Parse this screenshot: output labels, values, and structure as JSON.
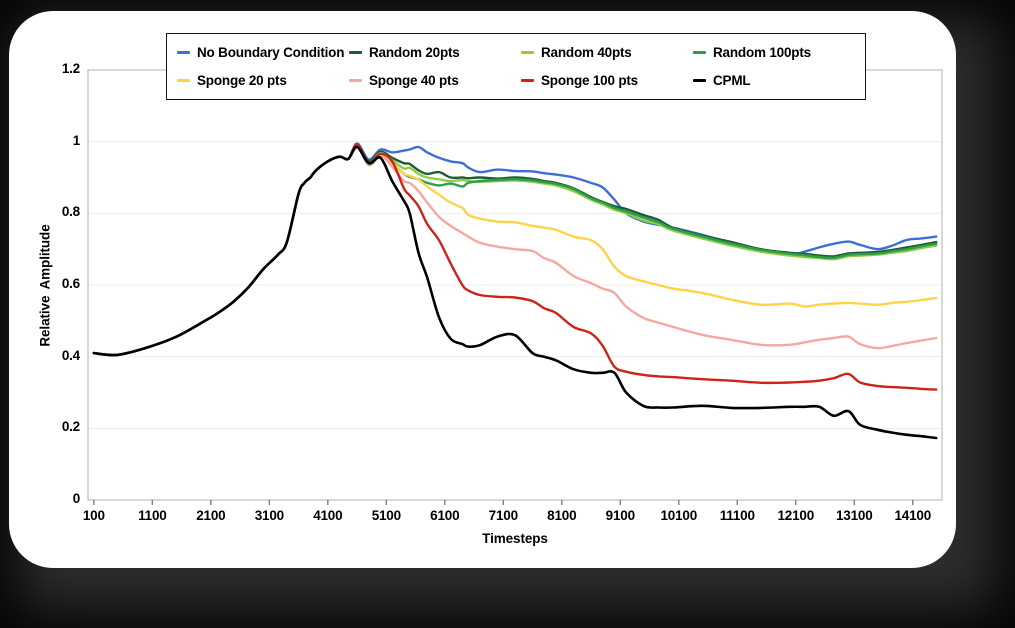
{
  "frame": {
    "backdrop_color": "#2e2e2e",
    "card_color": "#ffffff"
  },
  "chart_data": {
    "type": "line",
    "title": "",
    "xlabel": "Timesteps",
    "ylabel": "Relative Amplitude",
    "xlim": [
      0,
      14600
    ],
    "ylim": [
      0,
      1.2
    ],
    "grid": "horizontal-only",
    "legend_position": "top inside, 2 rows x 4 columns, white box with black border",
    "x_ticks": [
      100,
      1100,
      2100,
      3100,
      4100,
      5100,
      6100,
      7100,
      8100,
      9100,
      10100,
      11100,
      12100,
      13100,
      14100
    ],
    "x_tick_labels": [
      "100",
      "1100",
      "2100",
      "3100",
      "4100",
      "5100",
      "6100",
      "7100",
      "8100",
      "9100",
      "10100",
      "11100",
      "12100",
      "13100",
      "14100"
    ],
    "y_ticks": [
      0,
      0.2,
      0.4,
      0.6,
      0.8,
      1,
      1.2
    ],
    "y_tick_labels": [
      "0",
      "0.2",
      "0.4",
      "0.6",
      "0.8",
      "1",
      "1.2"
    ],
    "x": [
      100,
      500,
      1000,
      1500,
      2000,
      2250,
      2500,
      2750,
      3000,
      3250,
      3400,
      3600,
      3700,
      3800,
      3900,
      4100,
      4300,
      4450,
      4600,
      4800,
      5000,
      5200,
      5400,
      5500,
      5650,
      5800,
      6000,
      6200,
      6400,
      6500,
      6700,
      7000,
      7300,
      7600,
      7800,
      8000,
      8300,
      8600,
      8800,
      9000,
      9200,
      9500,
      9750,
      10000,
      10500,
      11000,
      11500,
      12000,
      12250,
      12500,
      12750,
      13000,
      13200,
      13500,
      13750,
      14000,
      14250,
      14500
    ],
    "series": [
      {
        "name": "No Boundary Condition",
        "color": "#3B6FD6",
        "width": 2.4,
        "values": [
          0.41,
          0.405,
          0.425,
          0.455,
          0.5,
          0.525,
          0.555,
          0.595,
          0.645,
          0.685,
          0.72,
          0.855,
          0.885,
          0.9,
          0.92,
          0.945,
          0.958,
          0.952,
          0.995,
          0.95,
          0.978,
          0.97,
          0.975,
          0.978,
          0.985,
          0.97,
          0.955,
          0.945,
          0.94,
          0.928,
          0.915,
          0.922,
          0.918,
          0.917,
          0.912,
          0.908,
          0.9,
          0.885,
          0.872,
          0.838,
          0.8,
          0.777,
          0.768,
          0.76,
          0.74,
          0.717,
          0.7,
          0.684,
          0.693,
          0.705,
          0.715,
          0.721,
          0.712,
          0.7,
          0.71,
          0.726,
          0.73,
          0.735
        ]
      },
      {
        "name": "Random 20pts",
        "color": "#1F5C33",
        "width": 2.4,
        "values": [
          0.41,
          0.405,
          0.425,
          0.455,
          0.5,
          0.525,
          0.555,
          0.595,
          0.645,
          0.685,
          0.72,
          0.855,
          0.885,
          0.9,
          0.92,
          0.945,
          0.958,
          0.952,
          0.992,
          0.945,
          0.972,
          0.955,
          0.94,
          0.938,
          0.92,
          0.91,
          0.915,
          0.9,
          0.9,
          0.898,
          0.9,
          0.897,
          0.9,
          0.896,
          0.89,
          0.885,
          0.87,
          0.845,
          0.832,
          0.82,
          0.812,
          0.795,
          0.782,
          0.76,
          0.738,
          0.72,
          0.7,
          0.69,
          0.687,
          0.682,
          0.68,
          0.688,
          0.69,
          0.692,
          0.698,
          0.705,
          0.712,
          0.72
        ]
      },
      {
        "name": "Random 40pts",
        "color": "#8FCE44",
        "width": 2.4,
        "values": [
          0.41,
          0.405,
          0.425,
          0.455,
          0.5,
          0.525,
          0.555,
          0.595,
          0.645,
          0.685,
          0.72,
          0.855,
          0.885,
          0.9,
          0.92,
          0.945,
          0.958,
          0.952,
          0.99,
          0.94,
          0.968,
          0.948,
          0.925,
          0.927,
          0.91,
          0.9,
          0.895,
          0.89,
          0.893,
          0.89,
          0.888,
          0.89,
          0.892,
          0.888,
          0.883,
          0.878,
          0.862,
          0.838,
          0.825,
          0.81,
          0.8,
          0.78,
          0.77,
          0.752,
          0.73,
          0.71,
          0.693,
          0.682,
          0.678,
          0.675,
          0.672,
          0.68,
          0.682,
          0.685,
          0.69,
          0.695,
          0.703,
          0.71
        ]
      },
      {
        "name": "Random 100pts",
        "color": "#2D9E49",
        "width": 2.4,
        "values": [
          0.41,
          0.405,
          0.425,
          0.455,
          0.5,
          0.525,
          0.555,
          0.595,
          0.645,
          0.685,
          0.72,
          0.855,
          0.885,
          0.9,
          0.92,
          0.945,
          0.958,
          0.952,
          0.99,
          0.935,
          0.962,
          0.94,
          0.91,
          0.902,
          0.895,
          0.885,
          0.878,
          0.883,
          0.875,
          0.885,
          0.89,
          0.893,
          0.895,
          0.892,
          0.887,
          0.882,
          0.868,
          0.842,
          0.83,
          0.815,
          0.805,
          0.788,
          0.775,
          0.757,
          0.735,
          0.715,
          0.698,
          0.687,
          0.683,
          0.678,
          0.676,
          0.684,
          0.686,
          0.688,
          0.694,
          0.7,
          0.708,
          0.715
        ]
      },
      {
        "name": "Sponge 20 pts",
        "color": "#FFD24A",
        "width": 2.4,
        "values": [
          0.41,
          0.405,
          0.425,
          0.455,
          0.5,
          0.525,
          0.555,
          0.595,
          0.645,
          0.685,
          0.72,
          0.855,
          0.885,
          0.9,
          0.92,
          0.945,
          0.958,
          0.952,
          0.99,
          0.94,
          0.965,
          0.94,
          0.91,
          0.905,
          0.894,
          0.875,
          0.852,
          0.83,
          0.815,
          0.796,
          0.785,
          0.777,
          0.775,
          0.765,
          0.76,
          0.754,
          0.735,
          0.725,
          0.7,
          0.651,
          0.625,
          0.61,
          0.6,
          0.59,
          0.578,
          0.559,
          0.545,
          0.548,
          0.54,
          0.545,
          0.548,
          0.55,
          0.548,
          0.545,
          0.55,
          0.553,
          0.558,
          0.564
        ]
      },
      {
        "name": "Sponge 40 pts",
        "color": "#F5A8A2",
        "width": 2.4,
        "values": [
          0.41,
          0.405,
          0.425,
          0.455,
          0.5,
          0.525,
          0.555,
          0.595,
          0.645,
          0.685,
          0.72,
          0.855,
          0.885,
          0.9,
          0.92,
          0.945,
          0.958,
          0.952,
          0.99,
          0.935,
          0.962,
          0.93,
          0.89,
          0.885,
          0.862,
          0.83,
          0.79,
          0.765,
          0.745,
          0.735,
          0.718,
          0.707,
          0.7,
          0.695,
          0.675,
          0.662,
          0.625,
          0.605,
          0.59,
          0.578,
          0.54,
          0.508,
          0.495,
          0.483,
          0.461,
          0.447,
          0.433,
          0.433,
          0.44,
          0.447,
          0.452,
          0.456,
          0.435,
          0.424,
          0.43,
          0.438,
          0.445,
          0.452
        ]
      },
      {
        "name": "Sponge 100 pts",
        "color": "#CE2318",
        "width": 2.4,
        "values": [
          0.41,
          0.405,
          0.425,
          0.455,
          0.5,
          0.525,
          0.555,
          0.595,
          0.645,
          0.685,
          0.72,
          0.855,
          0.885,
          0.9,
          0.92,
          0.945,
          0.958,
          0.952,
          0.992,
          0.94,
          0.966,
          0.945,
          0.87,
          0.85,
          0.82,
          0.77,
          0.725,
          0.66,
          0.6,
          0.585,
          0.572,
          0.567,
          0.565,
          0.555,
          0.535,
          0.522,
          0.483,
          0.465,
          0.43,
          0.372,
          0.358,
          0.349,
          0.345,
          0.343,
          0.337,
          0.333,
          0.327,
          0.328,
          0.33,
          0.333,
          0.34,
          0.352,
          0.328,
          0.318,
          0.315,
          0.313,
          0.31,
          0.308
        ]
      },
      {
        "name": "CPML",
        "color": "#000000",
        "width": 2.6,
        "values": [
          0.41,
          0.405,
          0.425,
          0.455,
          0.5,
          0.525,
          0.555,
          0.595,
          0.645,
          0.685,
          0.72,
          0.855,
          0.885,
          0.9,
          0.92,
          0.945,
          0.958,
          0.952,
          0.985,
          0.94,
          0.955,
          0.89,
          0.835,
          0.8,
          0.69,
          0.62,
          0.51,
          0.45,
          0.435,
          0.428,
          0.432,
          0.456,
          0.46,
          0.41,
          0.4,
          0.39,
          0.365,
          0.355,
          0.355,
          0.355,
          0.3,
          0.262,
          0.258,
          0.258,
          0.263,
          0.257,
          0.257,
          0.26,
          0.26,
          0.26,
          0.235,
          0.248,
          0.21,
          0.196,
          0.188,
          0.182,
          0.178,
          0.173
        ]
      }
    ],
    "style": {
      "grid_color": "#EDEDED",
      "frame_color": "#BFBFBF",
      "tick_color": "#7F7F7F"
    }
  }
}
